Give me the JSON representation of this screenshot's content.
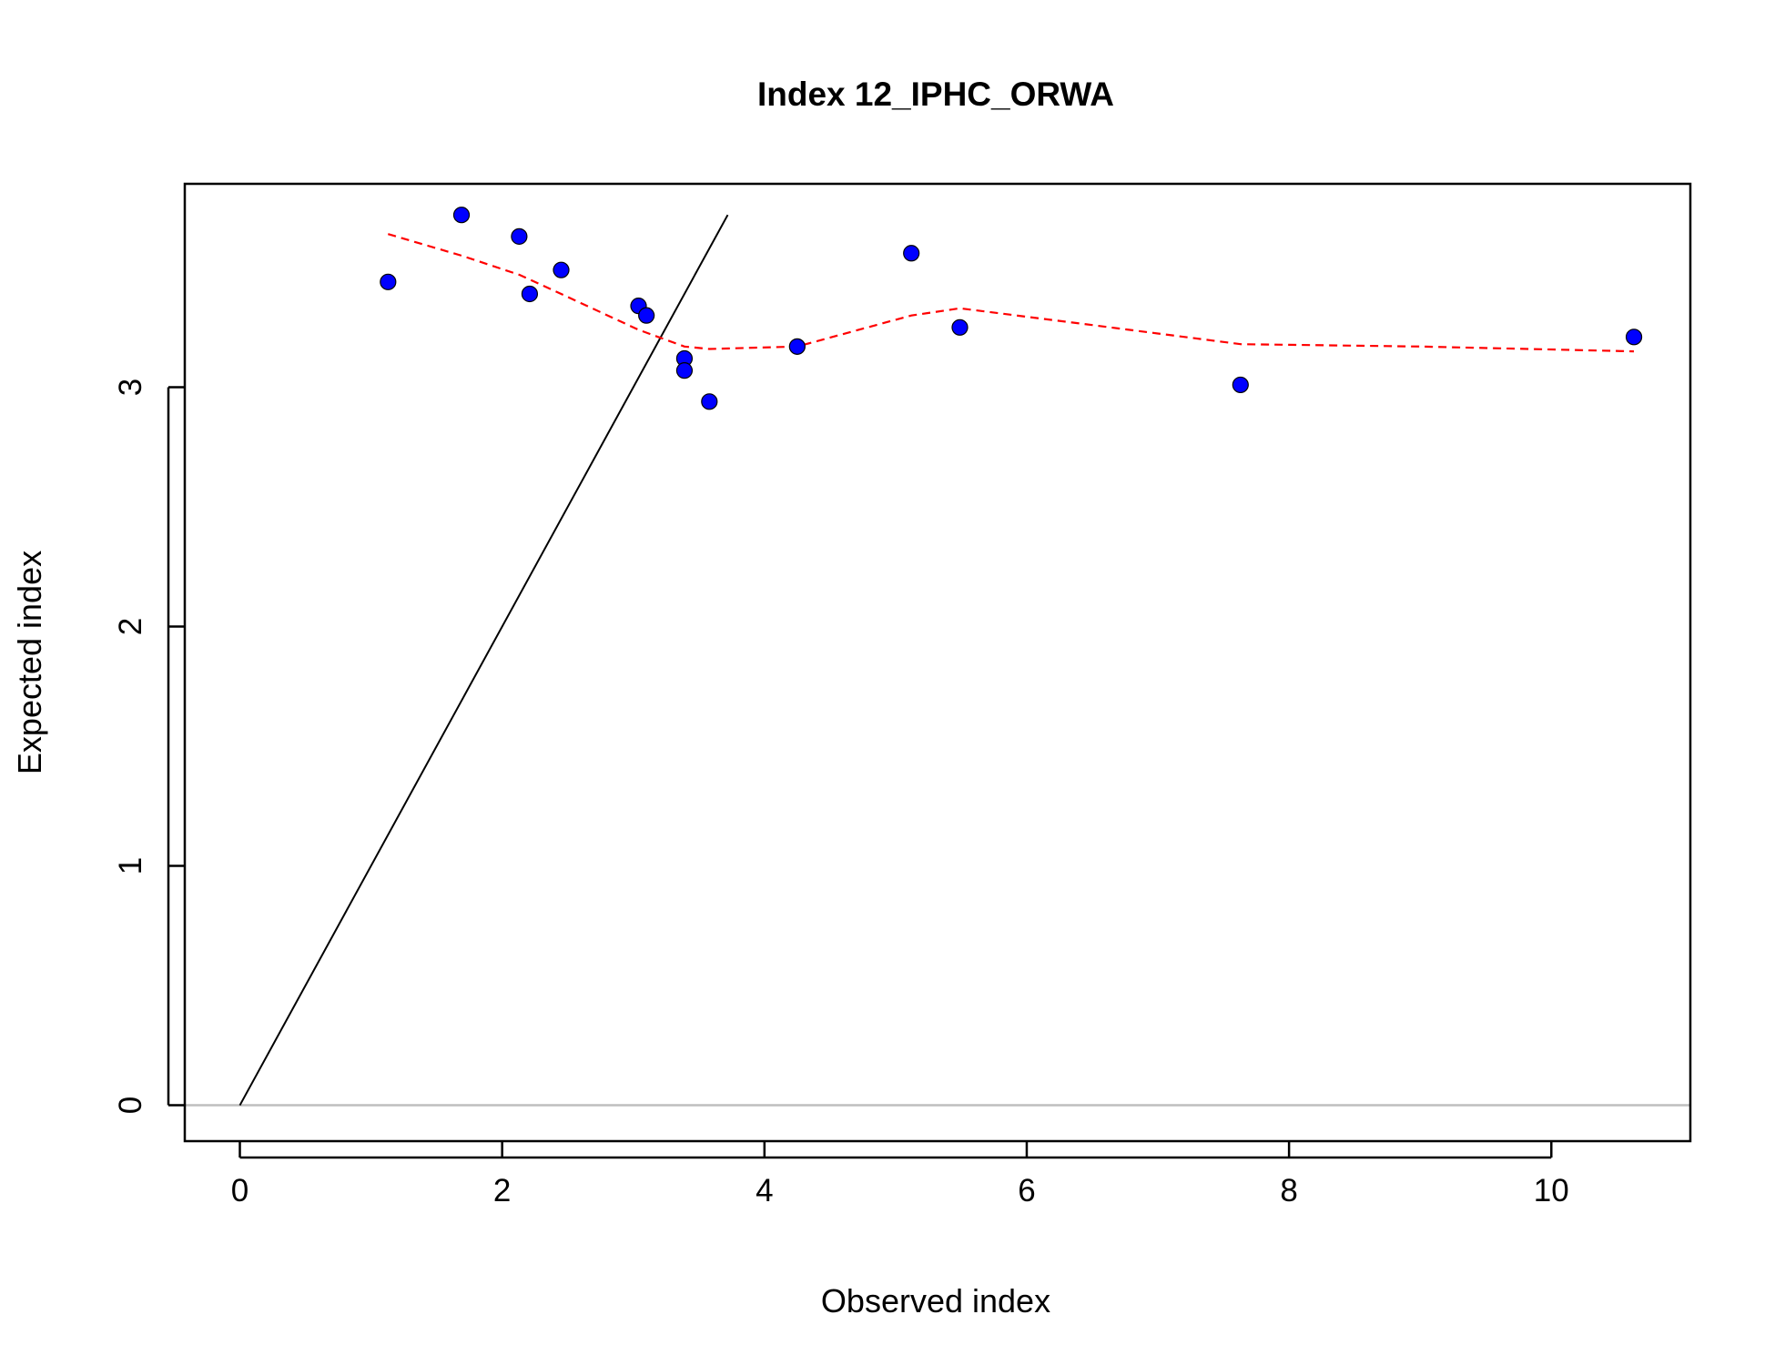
{
  "chart_data": {
    "type": "scatter",
    "title": "Index 12_IPHC_ORWA",
    "xlabel": "Observed index",
    "ylabel": "Expected index",
    "xlim": [
      -0.42,
      11.06
    ],
    "ylim": [
      -0.15,
      3.85
    ],
    "xticks": [
      "0",
      "2",
      "4",
      "6",
      "8",
      "10"
    ],
    "yticks": [
      "0",
      "1",
      "2",
      "3"
    ],
    "points": [
      {
        "x": 1.13,
        "y": 3.44
      },
      {
        "x": 1.69,
        "y": 3.72
      },
      {
        "x": 2.13,
        "y": 3.63
      },
      {
        "x": 2.21,
        "y": 3.39
      },
      {
        "x": 2.45,
        "y": 3.49
      },
      {
        "x": 3.04,
        "y": 3.34
      },
      {
        "x": 3.1,
        "y": 3.3
      },
      {
        "x": 3.39,
        "y": 3.12
      },
      {
        "x": 3.39,
        "y": 3.07
      },
      {
        "x": 3.58,
        "y": 2.94
      },
      {
        "x": 4.25,
        "y": 3.17
      },
      {
        "x": 5.12,
        "y": 3.56
      },
      {
        "x": 5.49,
        "y": 3.25
      },
      {
        "x": 7.63,
        "y": 3.01
      },
      {
        "x": 10.63,
        "y": 3.21
      }
    ],
    "identity_line": {
      "x": [
        0,
        3.72
      ],
      "y": [
        0,
        3.72
      ],
      "color": "#000000"
    },
    "smoother": {
      "x": [
        1.13,
        1.69,
        2.13,
        2.45,
        3.04,
        3.39,
        3.58,
        4.25,
        5.12,
        5.49,
        6.5,
        7.63,
        9.0,
        10.63
      ],
      "y": [
        3.64,
        3.55,
        3.47,
        3.39,
        3.24,
        3.17,
        3.16,
        3.17,
        3.3,
        3.33,
        3.26,
        3.18,
        3.17,
        3.15
      ],
      "color": "#ff0000"
    },
    "zero_line": {
      "y": 0,
      "color": "#bebebe"
    },
    "point_color": "#0000ff",
    "grid": false
  }
}
